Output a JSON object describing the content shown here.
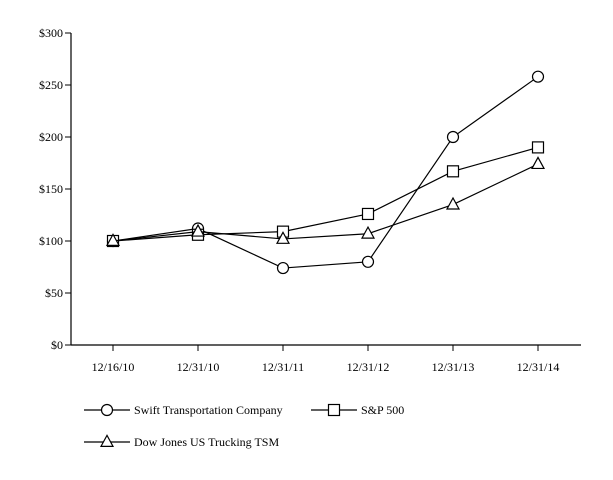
{
  "chart_data": {
    "type": "line",
    "categories": [
      "12/16/10",
      "12/31/10",
      "12/31/11",
      "12/31/12",
      "12/31/13",
      "12/31/14"
    ],
    "y_ticks": [
      "$0",
      "$50",
      "$100",
      "$150",
      "$200",
      "$250",
      "$300"
    ],
    "ylim": [
      0,
      300
    ],
    "grid": false,
    "legend_position": "bottom-left",
    "series": [
      {
        "name": "Swift Transportation Company",
        "marker": "circle",
        "values": [
          100,
          112,
          74,
          80,
          200,
          258
        ]
      },
      {
        "name": "S&P 500",
        "marker": "square",
        "values": [
          100,
          106,
          109,
          126,
          167,
          190
        ]
      },
      {
        "name": "Dow Jones US Trucking TSM",
        "marker": "triangle",
        "values": [
          100,
          109,
          102,
          107,
          135,
          174
        ]
      }
    ],
    "line_color": "#000000",
    "marker_fill": "#ffffff"
  }
}
